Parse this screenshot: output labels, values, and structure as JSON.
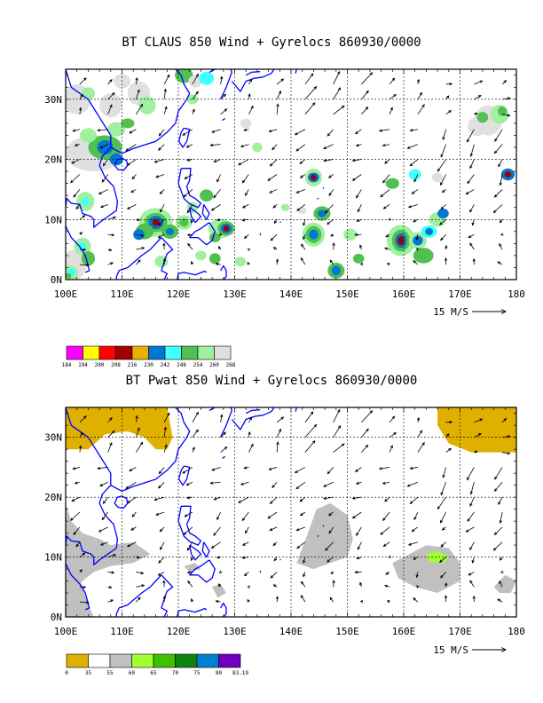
{
  "panels": [
    {
      "title": "BT CLAUS 850 Wind + Gyrelocs 860930/0000",
      "lon_labels": [
        "100E",
        "110E",
        "120E",
        "130E",
        "140E",
        "150E",
        "160E",
        "170E",
        "180"
      ],
      "lat_labels": [
        "0N",
        "10N",
        "20N",
        "30N"
      ],
      "ref_vector_label": "15 M/S",
      "colorbar": {
        "colors": [
          "#ff00ff",
          "#ffff00",
          "#ff0000",
          "#a00000",
          "#e8b000",
          "#0077d0",
          "#40ffff",
          "#50c050",
          "#a0f0a0",
          "#e0e0e0"
        ],
        "labels": [
          "184",
          "194",
          "200",
          "208",
          "216",
          "230",
          "242",
          "248",
          "254",
          "260",
          "268"
        ]
      }
    },
    {
      "title": "BT Pwat 850 Wind + Gyrelocs 860930/0000",
      "lon_labels": [
        "100E",
        "110E",
        "120E",
        "130E",
        "140E",
        "150E",
        "160E",
        "170E",
        "180"
      ],
      "lat_labels": [
        "0N",
        "10N",
        "20N",
        "30N"
      ],
      "ref_vector_label": "15 M/S",
      "colorbar": {
        "colors": [
          "#e0b000",
          "#ffffff",
          "#c0c0c0",
          "#a0ff30",
          "#40c000",
          "#108010",
          "#0080d0",
          "#7000c0"
        ],
        "labels": [
          "0",
          "35",
          "55",
          "60",
          "65",
          "70",
          "75",
          "80",
          "83.19"
        ]
      }
    }
  ],
  "colors": {
    "coastline": "#0000ff",
    "grid": "#000000",
    "vector": "#000000"
  }
}
